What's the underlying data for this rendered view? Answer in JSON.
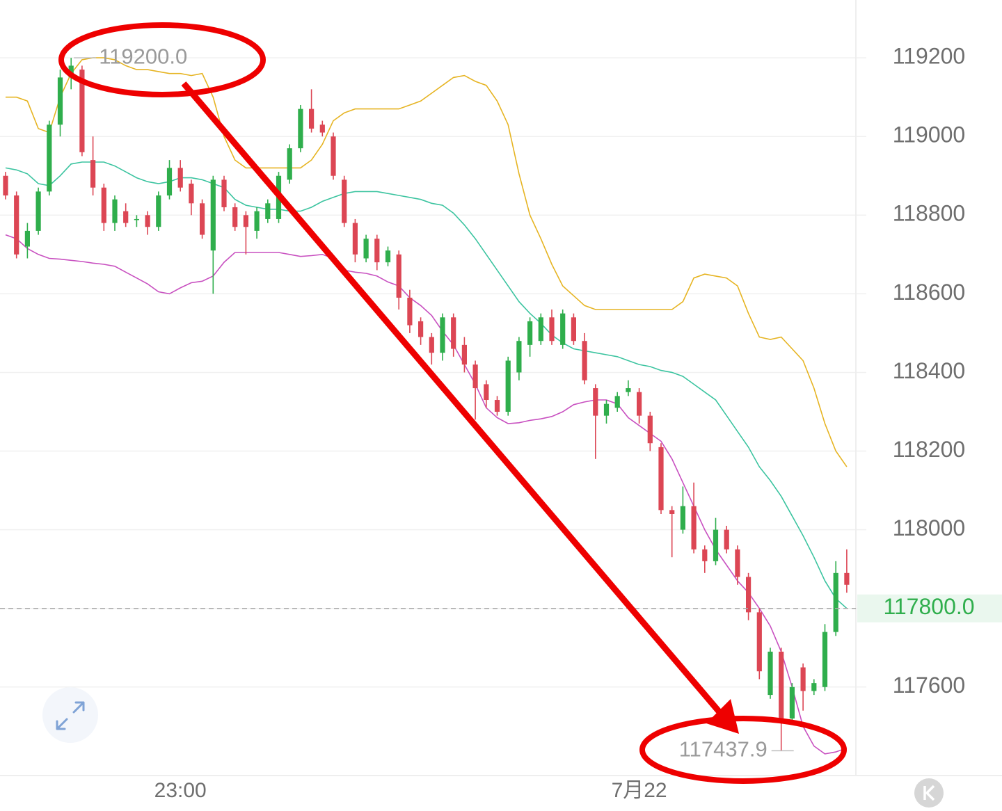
{
  "chart_data": {
    "type": "candlestick",
    "categories": [
      null,
      null,
      null,
      null,
      null,
      null,
      null,
      null,
      null,
      null,
      null,
      null,
      null,
      null,
      null,
      null,
      "23:00",
      null,
      null,
      null,
      null,
      null,
      null,
      null,
      null,
      null,
      null,
      null,
      null,
      null,
      null,
      null,
      null,
      null,
      null,
      null,
      null,
      null,
      null,
      null,
      null,
      null,
      null,
      null,
      null,
      null,
      null,
      null,
      null,
      null,
      null,
      null,
      null,
      null,
      null,
      null,
      null,
      null,
      "7月22",
      null,
      null,
      null,
      null,
      null,
      null,
      null,
      null,
      null,
      null,
      null,
      null,
      null,
      null,
      null,
      null,
      null,
      null,
      null
    ],
    "open": [
      118900,
      118850,
      118720,
      118760,
      118860,
      119030,
      119150,
      119170,
      118940,
      118870,
      118780,
      118810,
      118790,
      118800,
      118770,
      118850,
      118920,
      118880,
      118830,
      118710,
      118890,
      118820,
      118800,
      118760,
      118790,
      118790,
      118890,
      118970,
      119070,
      119030,
      119000,
      118890,
      118780,
      118690,
      118740,
      118680,
      118700,
      118590,
      118530,
      118490,
      118450,
      118540,
      118470,
      118420,
      118370,
      118330,
      118300,
      118400,
      118470,
      118480,
      118540,
      118470,
      118540,
      118480,
      118360,
      118290,
      118310,
      118350,
      118350,
      118290,
      118210,
      118050,
      118000,
      118060,
      117950,
      117920,
      118000,
      117950,
      117880,
      117790,
      117580,
      117690,
      117520,
      117650,
      117590,
      117600,
      117740,
      117890
    ],
    "high": [
      118910,
      118860,
      118780,
      118870,
      119040,
      119170,
      119200,
      119180,
      119000,
      118880,
      118850,
      118830,
      118800,
      118810,
      118860,
      118940,
      118940,
      118890,
      118840,
      118900,
      118900,
      118830,
      118810,
      118820,
      118840,
      118910,
      118980,
      119080,
      119120,
      119040,
      119010,
      118900,
      118790,
      118750,
      118750,
      118720,
      118710,
      118610,
      118540,
      118500,
      118550,
      118550,
      118490,
      118430,
      118380,
      118340,
      118440,
      118490,
      118540,
      118550,
      118560,
      118560,
      118550,
      118500,
      118370,
      118330,
      118350,
      118380,
      118360,
      118300,
      118220,
      118060,
      118110,
      118120,
      117960,
      118030,
      118010,
      117960,
      117890,
      117800,
      117700,
      117700,
      117610,
      117660,
      117620,
      117760,
      117920,
      117950
    ],
    "low": [
      118840,
      118690,
      118690,
      118750,
      118850,
      119000,
      119120,
      118950,
      118850,
      118760,
      118760,
      118770,
      118770,
      118750,
      118760,
      118840,
      118860,
      118800,
      118740,
      118600,
      118810,
      118760,
      118700,
      118740,
      118780,
      118780,
      118880,
      118960,
      119010,
      119000,
      118890,
      118770,
      118680,
      118680,
      118660,
      118670,
      118560,
      118500,
      118470,
      118420,
      118430,
      118440,
      118400,
      118280,
      118310,
      118290,
      118290,
      118380,
      118440,
      118470,
      118470,
      118460,
      118470,
      118370,
      118180,
      118270,
      118300,
      118340,
      118270,
      118200,
      118040,
      117930,
      117990,
      117940,
      117890,
      117910,
      117940,
      117860,
      117770,
      117620,
      117570,
      117437.9,
      117510,
      117540,
      117580,
      117590,
      117730,
      117840
    ],
    "close": [
      118850,
      118700,
      118760,
      118860,
      119030,
      119150,
      119180,
      118960,
      118870,
      118780,
      118840,
      118780,
      118790,
      118770,
      118850,
      118920,
      118870,
      118830,
      118750,
      118890,
      118820,
      118770,
      118770,
      118810,
      118830,
      118900,
      118970,
      119070,
      119020,
      119010,
      118900,
      118780,
      118700,
      118740,
      118680,
      118710,
      118590,
      118520,
      118490,
      118450,
      118540,
      118460,
      118420,
      118360,
      118330,
      118300,
      118430,
      118480,
      118530,
      118540,
      118480,
      118550,
      118480,
      118380,
      118290,
      118320,
      118340,
      118360,
      118290,
      118220,
      118050,
      118040,
      118060,
      117950,
      117920,
      118000,
      117950,
      117880,
      117790,
      117640,
      117690,
      117510,
      117600,
      117590,
      117610,
      117740,
      117890,
      117860
    ],
    "up_color": "#2fae4c",
    "down_color": "#dc4654",
    "bands": [
      {
        "color": "#e6b422",
        "values": [
          119100,
          119100,
          119090,
          119020,
          119010,
          119100,
          119160,
          119195,
          119200,
          119200,
          119195,
          119180,
          119170,
          119170,
          119165,
          119160,
          119160,
          119155,
          119160,
          119100,
          119000,
          118940,
          118920,
          118920,
          118920,
          118920,
          118920,
          118920,
          118940,
          118980,
          119040,
          119060,
          119070,
          119070,
          119070,
          119070,
          119070,
          119080,
          119090,
          119110,
          119130,
          119150,
          119155,
          119140,
          119130,
          119090,
          119030,
          118905,
          118800,
          118740,
          118675,
          118620,
          118595,
          118570,
          118560,
          118560,
          118560,
          118560,
          118560,
          118560,
          118560,
          118560,
          118580,
          118640,
          118650,
          118645,
          118640,
          118620,
          118550,
          118490,
          118484,
          118490,
          118460,
          118430,
          118360,
          118270,
          118200,
          118160
        ]
      },
      {
        "color": "#3cc4a0",
        "values": [
          118920,
          118915,
          118905,
          118880,
          118875,
          118900,
          118930,
          118935,
          118935,
          118935,
          118925,
          118910,
          118895,
          118885,
          118880,
          118885,
          118895,
          118895,
          118890,
          118880,
          118870,
          118840,
          118825,
          118820,
          118815,
          118815,
          118810,
          118810,
          118820,
          118835,
          118845,
          118855,
          118860,
          118860,
          118860,
          118855,
          118850,
          118845,
          118840,
          118830,
          118825,
          118805,
          118775,
          118740,
          118700,
          118660,
          118620,
          118580,
          118550,
          118525,
          118495,
          118475,
          118460,
          118455,
          118450,
          118445,
          118440,
          118430,
          118420,
          118415,
          118405,
          118400,
          118390,
          118370,
          118350,
          118330,
          118290,
          118250,
          118210,
          118160,
          118125,
          118085,
          118035,
          117985,
          117930,
          117870,
          117825,
          117800
        ]
      },
      {
        "color": "#c850c0",
        "values": [
          118750,
          118740,
          118715,
          118700,
          118690,
          118688,
          118685,
          118682,
          118678,
          118675,
          118670,
          118655,
          118640,
          118625,
          118605,
          118600,
          118615,
          118628,
          118632,
          118645,
          118680,
          118705,
          118705,
          118705,
          118705,
          118705,
          118700,
          118695,
          118697,
          118700,
          118690,
          118660,
          118655,
          118652,
          118645,
          118630,
          118620,
          118590,
          118570,
          118545,
          118505,
          118470,
          118420,
          118370,
          118310,
          118285,
          118270,
          118272,
          118278,
          118282,
          118288,
          118300,
          118318,
          118325,
          118330,
          118330,
          118320,
          118285,
          118265,
          118245,
          118225,
          118180,
          118120,
          118060,
          118000,
          117950,
          117910,
          117870,
          117840,
          117800,
          117755,
          117690,
          117600,
          117500,
          117450,
          117430,
          117435,
          117445
        ]
      }
    ],
    "ylim": [
      117375,
      119347
    ],
    "yticks": [
      117600,
      117800,
      118000,
      118200,
      118400,
      118600,
      118800,
      119000,
      119200
    ],
    "grid": true,
    "last_price": {
      "value": 117800,
      "label": "117800.0",
      "color": "#2fae4c"
    },
    "max_marker": {
      "value": 119200,
      "label": "119200.0"
    },
    "min_marker": {
      "value": 117437.9,
      "label": "117437.9"
    }
  }
}
